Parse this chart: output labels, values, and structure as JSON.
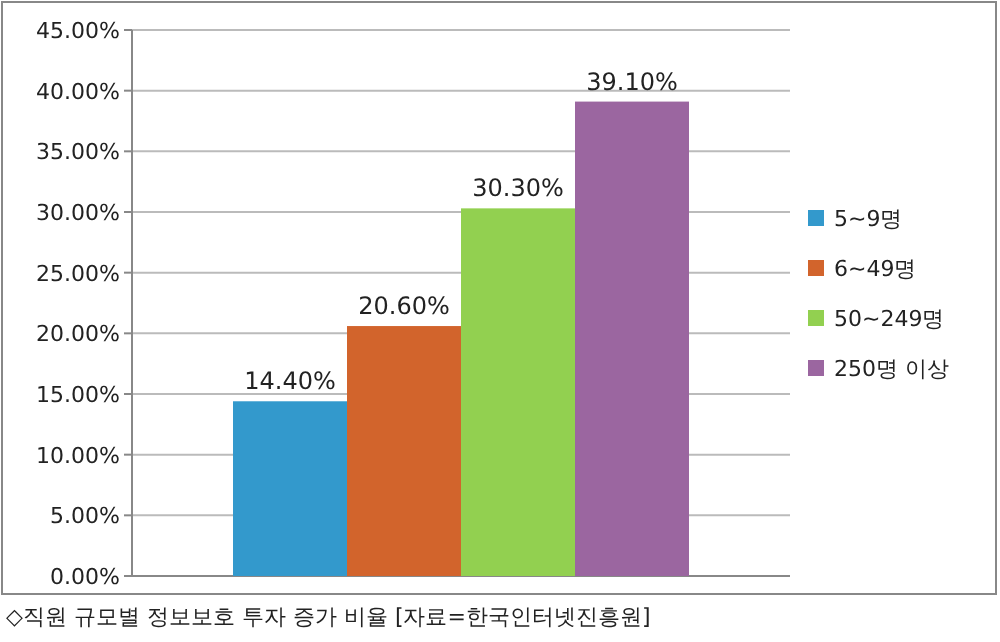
{
  "chart_data": {
    "type": "bar",
    "categories": [
      null
    ],
    "series": [
      {
        "name": "5~9명",
        "color": "#3399cc",
        "values": [
          14.4
        ],
        "value_labels": [
          "14.40%"
        ]
      },
      {
        "name": "6~49명",
        "color": "#d2642c",
        "values": [
          20.6
        ],
        "value_labels": [
          "20.60%"
        ]
      },
      {
        "name": "50~249명",
        "color": "#92d050",
        "values": [
          30.3
        ],
        "value_labels": [
          "30.30%"
        ]
      },
      {
        "name": "250명 이상",
        "color": "#9b66a0",
        "values": [
          39.1
        ],
        "value_labels": [
          "39.10%"
        ]
      }
    ],
    "ylim": [
      0,
      45
    ],
    "yticks": [
      {
        "value": 0,
        "label": "0.00%"
      },
      {
        "value": 5,
        "label": "5.00%"
      },
      {
        "value": 10,
        "label": "10.00%"
      },
      {
        "value": 15,
        "label": "15.00%"
      },
      {
        "value": 20,
        "label": "20.00%"
      },
      {
        "value": 25,
        "label": "25.00%"
      },
      {
        "value": 30,
        "label": "30.00%"
      },
      {
        "value": 35,
        "label": "35.00%"
      },
      {
        "value": 40,
        "label": "40.00%"
      },
      {
        "value": 45,
        "label": "45.00%"
      }
    ],
    "grid": "y",
    "legend": "right",
    "annotations": [
      "◇직원 규모별 정보보호 투자 증가 비율 [자료=한국인터넷진흥원]"
    ]
  }
}
